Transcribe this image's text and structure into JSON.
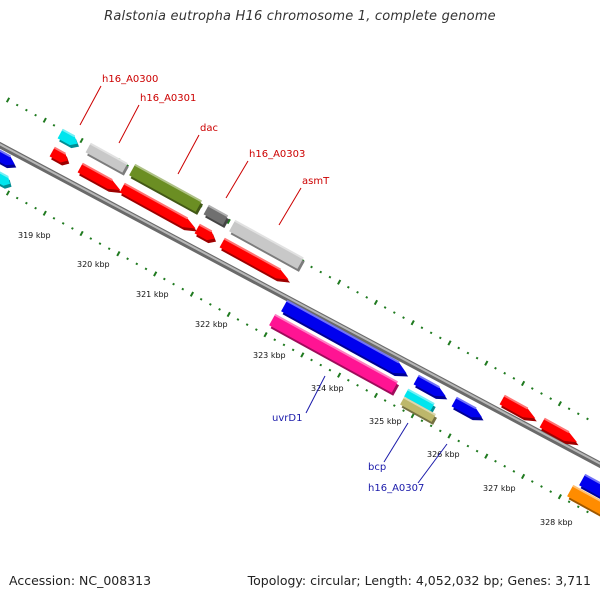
{
  "title": "Ralstonia eutropha H16 chromosome 1, complete genome",
  "accession": "Accession: NC_008313",
  "summary": "Topology: circular; Length: 4,052,032 bp; Genes: 3,711",
  "colors": {
    "backbone": "#8a8a8a",
    "ticks": "#1f7a1f",
    "label_red": "#cc0000",
    "label_blue": "#1a1aaa",
    "red": "#ff0000",
    "blue": "#0000ee",
    "cyan": "#00e5ee",
    "lightgray": "#c8c8c8",
    "olive": "#6b8e23",
    "darkgray": "#707070",
    "magenta": "#ff1493",
    "khaki": "#bdb76b",
    "orange": "#ff8c00"
  },
  "scale_labels": [
    "319 kbp",
    "320 kbp",
    "321 kbp",
    "322 kbp",
    "323 kbp",
    "324 kbp",
    "325 kbp",
    "326 kbp",
    "327 kbp",
    "328 kbp"
  ],
  "gene_labels": [
    {
      "name": "h16_A0300",
      "color": "label_red"
    },
    {
      "name": "h16_A0301",
      "color": "label_red"
    },
    {
      "name": "dac",
      "color": "label_red"
    },
    {
      "name": "h16_A0303",
      "color": "label_red"
    },
    {
      "name": "asmT",
      "color": "label_red"
    },
    {
      "name": "uvrD1",
      "color": "label_blue"
    },
    {
      "name": "bcp",
      "color": "label_blue"
    },
    {
      "name": "h16_A0307",
      "color": "label_blue"
    }
  ],
  "features": [
    {
      "color": "blue"
    },
    {
      "color": "cyan"
    },
    {
      "color": "red"
    },
    {
      "color": "cyan"
    },
    {
      "color": "lightgray"
    },
    {
      "color": "red"
    },
    {
      "color": "olive"
    },
    {
      "color": "red"
    },
    {
      "color": "darkgray"
    },
    {
      "color": "red"
    },
    {
      "color": "lightgray"
    },
    {
      "color": "red"
    },
    {
      "color": "blue"
    },
    {
      "color": "magenta"
    },
    {
      "color": "blue"
    },
    {
      "color": "cyan"
    },
    {
      "color": "khaki"
    },
    {
      "color": "blue"
    },
    {
      "color": "red"
    },
    {
      "color": "red"
    },
    {
      "color": "blue"
    },
    {
      "color": "orange"
    }
  ]
}
